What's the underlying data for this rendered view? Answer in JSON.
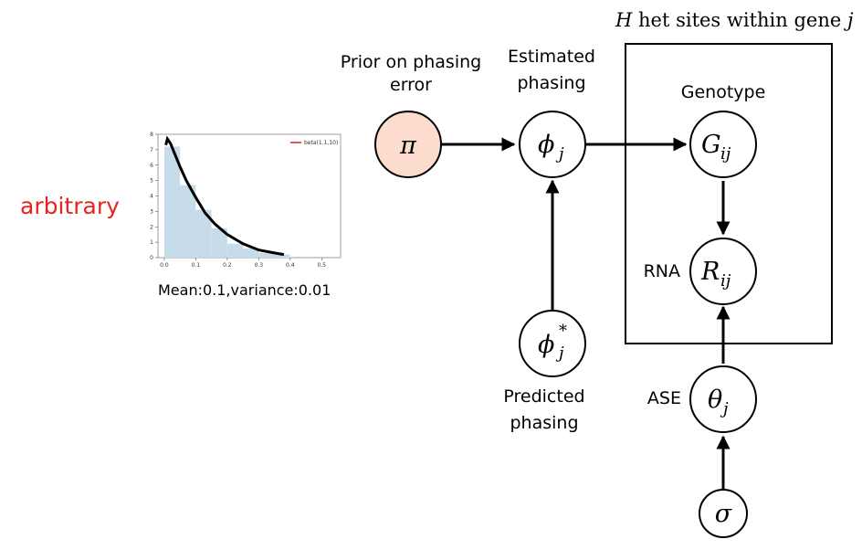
{
  "side_label": "arbitrary",
  "colors": {
    "side_label": "#e8231f",
    "prior_node_fill": "#fbdccd",
    "curve": "#e8545a",
    "hist_fill": "#c6dcea"
  },
  "labels": {
    "prior": [
      "Prior on phasing",
      "error"
    ],
    "estimated": [
      "Estimated",
      "phasing"
    ],
    "predicted": [
      "Predicted",
      "phasing"
    ],
    "genotype": "Genotype",
    "rna": "RNA",
    "ase": "ASE",
    "plate_title_var": "H",
    "plate_title_rest": " het sites within gene ",
    "plate_title_index": "j"
  },
  "nodes": {
    "pi": {
      "sym": "π",
      "sub": ""
    },
    "phi": {
      "sym": "ϕ",
      "sub": "j"
    },
    "phi_star": {
      "sym": "ϕ",
      "sub": "j",
      "sup": "*"
    },
    "G": {
      "sym": "G",
      "sub": "ij"
    },
    "R": {
      "sym": "R",
      "sub": "ij"
    },
    "theta": {
      "sym": "θ",
      "sub": "j"
    },
    "sigma": {
      "sym": "σ",
      "sub": ""
    }
  },
  "chart_caption": "Mean:0.1,variance:0.01",
  "chart_data": {
    "type": "area",
    "legend": "beta(1.1,10)",
    "legend_position": "top-right",
    "xlim": [
      -0.02,
      0.56
    ],
    "ylim": [
      0,
      8
    ],
    "xticks": [
      "0.0",
      "0.1",
      "0.2",
      "0.3",
      "0.4",
      "0.5"
    ],
    "yticks": [
      "0",
      "1",
      "2",
      "3",
      "4",
      "5",
      "6",
      "7",
      "8"
    ],
    "histogram": {
      "bin_edges": [
        0.0,
        0.05,
        0.1,
        0.15,
        0.2,
        0.25,
        0.3,
        0.35,
        0.4
      ],
      "heights": [
        7.2,
        4.7,
        3.1,
        1.9,
        0.9,
        0.6,
        0.3,
        0.2
      ]
    },
    "curve": {
      "x": [
        0.005,
        0.01,
        0.02,
        0.03,
        0.05,
        0.07,
        0.1,
        0.13,
        0.16,
        0.2,
        0.25,
        0.3,
        0.35,
        0.38
      ],
      "y": [
        7.3,
        7.7,
        7.4,
        6.9,
        5.9,
        5.0,
        3.9,
        2.9,
        2.2,
        1.5,
        0.9,
        0.5,
        0.3,
        0.2
      ]
    }
  }
}
